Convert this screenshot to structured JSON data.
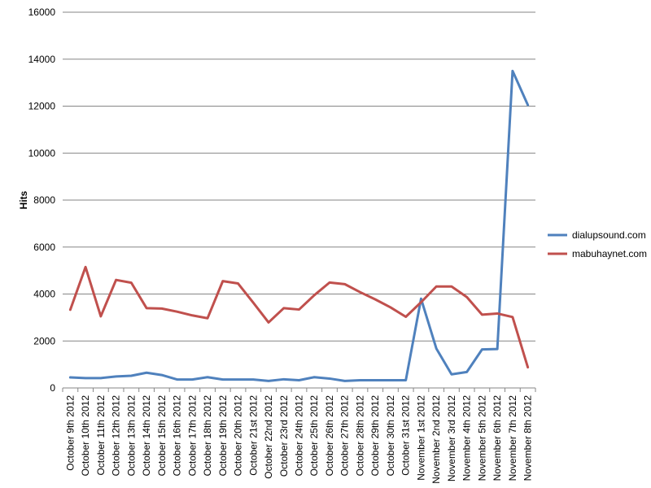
{
  "chart_data": {
    "type": "line",
    "title": "",
    "xlabel": "",
    "ylabel": "Hits",
    "ylim": [
      0,
      16000
    ],
    "yticks": [
      0,
      2000,
      4000,
      6000,
      8000,
      10000,
      12000,
      14000,
      16000
    ],
    "grid": "horizontal",
    "legend_position": "right",
    "categories": [
      "October 9th 2012",
      "October 10th 2012",
      "October 11th 2012",
      "October 12th 2012",
      "October 13th 2012",
      "October 14th 2012",
      "October 15th 2012",
      "October 16th 2012",
      "October 17th 2012",
      "October 18th 2012",
      "October 19th 2012",
      "October 20th 2012",
      "October 21st 2012",
      "October 22nd 2012",
      "October 23rd 2012",
      "October 24th 2012",
      "October 25th 2012",
      "October 26th 2012",
      "October 27th 2012",
      "October 28th 2012",
      "October 29th 2012",
      "October 30th 2012",
      "October 31st 2012",
      "November 1st 2012",
      "November 2nd 2012",
      "November 3rd 2012",
      "November 4th 2012",
      "November 5th 2012",
      "November 6th 2012",
      "November 7th 2012",
      "November 8th 2012"
    ],
    "series": [
      {
        "name": "dialupsound.com",
        "color": "#4f81bd",
        "values": [
          450,
          420,
          420,
          490,
          520,
          650,
          550,
          360,
          360,
          460,
          360,
          360,
          360,
          300,
          370,
          330,
          460,
          400,
          300,
          330,
          330,
          330,
          330,
          3800,
          1680,
          580,
          680,
          1640,
          1660,
          13500,
          12050
        ]
      },
      {
        "name": "mabuhaynet.com",
        "color": "#c0504d",
        "values": [
          3330,
          5150,
          3050,
          4600,
          4480,
          3400,
          3380,
          3250,
          3090,
          2970,
          4550,
          4450,
          3630,
          2790,
          3400,
          3340,
          3950,
          4490,
          4420,
          4080,
          3770,
          3430,
          3030,
          3650,
          4320,
          4320,
          3870,
          3120,
          3170,
          3020,
          880
        ]
      }
    ]
  }
}
